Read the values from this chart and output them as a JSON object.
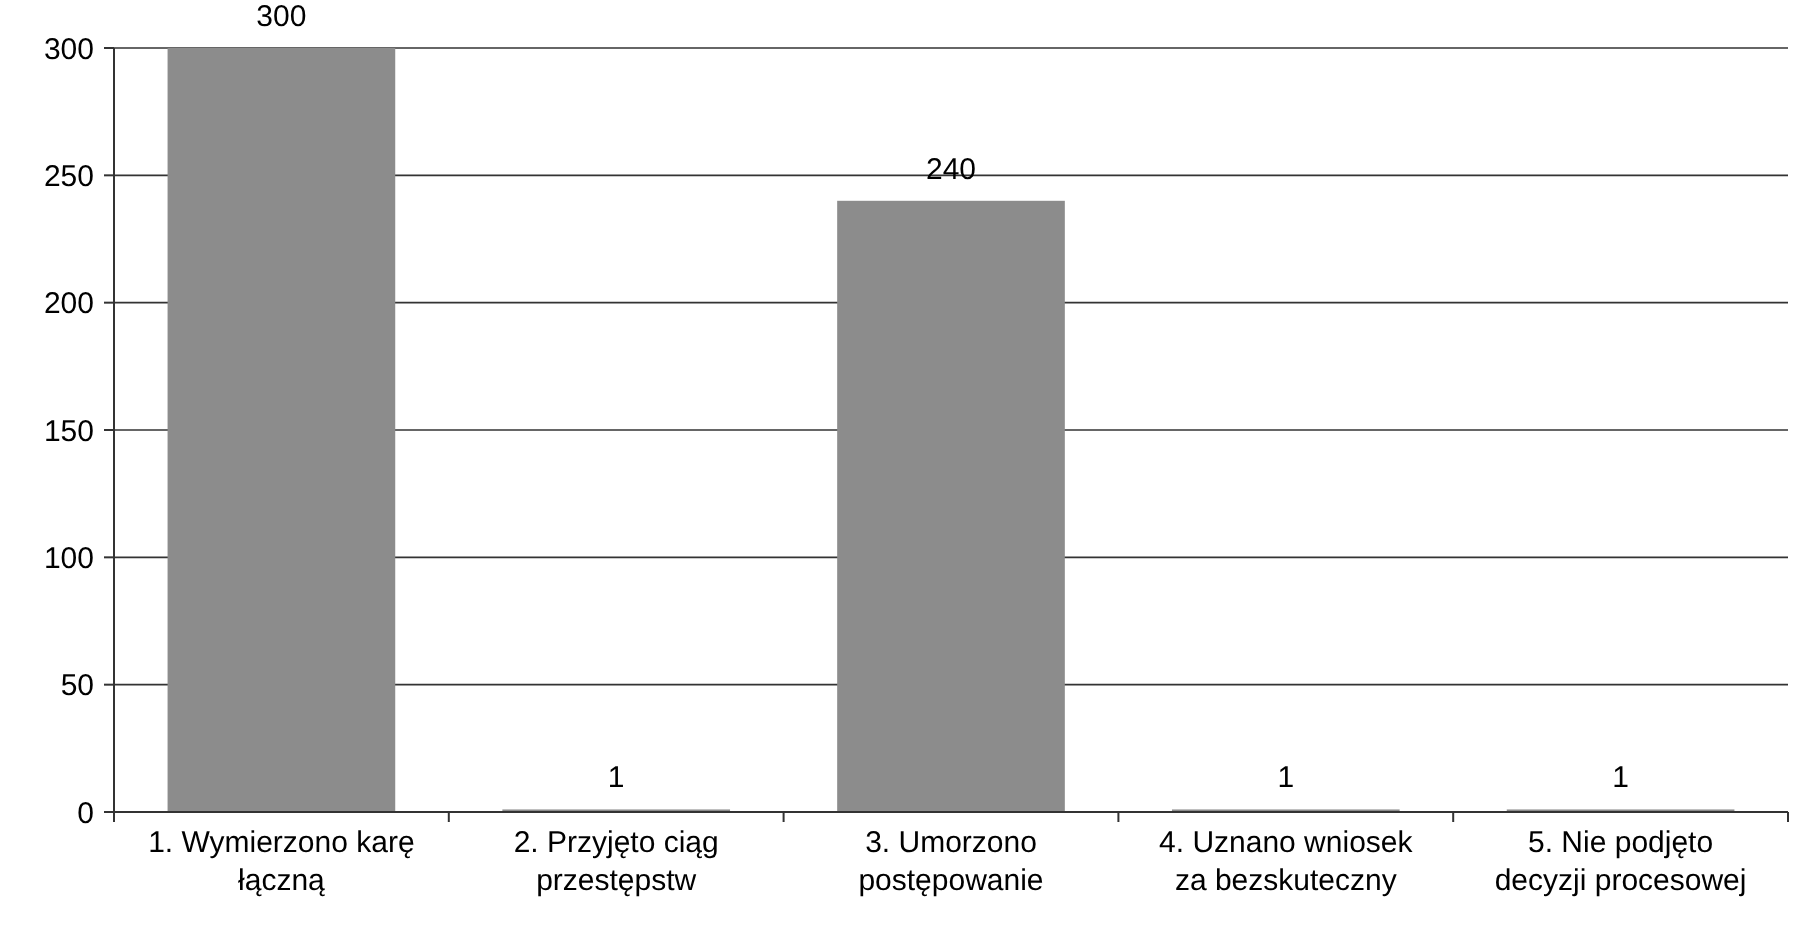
{
  "chart_data": {
    "type": "bar",
    "categories": [
      "1. Wymierzono karę łączną",
      "2. Przyjęto ciąg przestępstw",
      "3. Umorzono postępowanie",
      "4. Uznano wniosek za bezskuteczny",
      "5. Nie podjęto decyzji procesowej"
    ],
    "values": [
      300,
      1,
      240,
      1,
      1
    ],
    "color": "#8c8c8c",
    "data_labels": true,
    "ylim": [
      0,
      300
    ],
    "yticks": [
      0,
      50,
      100,
      150,
      200,
      250,
      300
    ],
    "grid": "y"
  }
}
